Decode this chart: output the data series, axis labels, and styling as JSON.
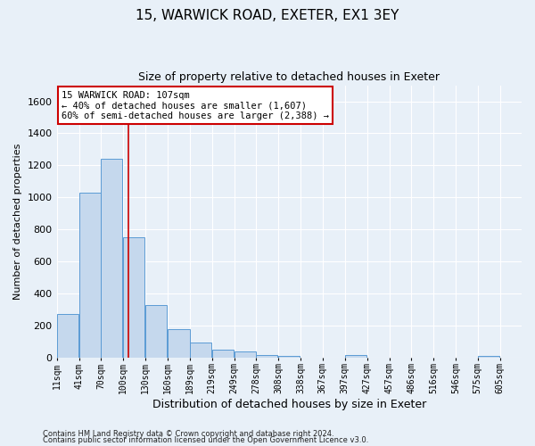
{
  "title1": "15, WARWICK ROAD, EXETER, EX1 3EY",
  "title2": "Size of property relative to detached houses in Exeter",
  "xlabel": "Distribution of detached houses by size in Exeter",
  "ylabel": "Number of detached properties",
  "bar_color": "#c5d8ed",
  "bar_edge_color": "#5b9bd5",
  "vline_color": "#cc0000",
  "vline_x": 107,
  "categories": [
    "11sqm",
    "41sqm",
    "70sqm",
    "100sqm",
    "130sqm",
    "160sqm",
    "189sqm",
    "219sqm",
    "249sqm",
    "278sqm",
    "308sqm",
    "338sqm",
    "367sqm",
    "397sqm",
    "427sqm",
    "457sqm",
    "486sqm",
    "516sqm",
    "546sqm",
    "575sqm",
    "605sqm"
  ],
  "bin_starts": [
    11,
    41,
    70,
    100,
    130,
    160,
    189,
    219,
    249,
    278,
    308,
    338,
    367,
    397,
    427,
    457,
    486,
    516,
    546,
    575,
    605
  ],
  "bin_width": 29,
  "values": [
    270,
    1030,
    1240,
    750,
    325,
    175,
    90,
    50,
    35,
    15,
    10,
    0,
    0,
    15,
    0,
    0,
    0,
    0,
    0,
    10,
    0
  ],
  "ylim": [
    0,
    1700
  ],
  "yticks": [
    0,
    200,
    400,
    600,
    800,
    1000,
    1200,
    1400,
    1600
  ],
  "annotation_line1": "15 WARWICK ROAD: 107sqm",
  "annotation_line2": "← 40% of detached houses are smaller (1,607)",
  "annotation_line3": "60% of semi-detached houses are larger (2,388) →",
  "footer1": "Contains HM Land Registry data © Crown copyright and database right 2024.",
  "footer2": "Contains public sector information licensed under the Open Government Licence v3.0.",
  "background_color": "#e8f0f8",
  "grid_color": "#ffffff",
  "fig_width": 6.0,
  "fig_height": 5.0,
  "dpi": 100
}
